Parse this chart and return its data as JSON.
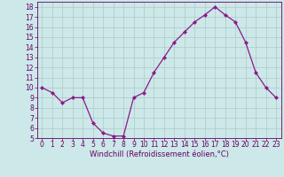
{
  "x": [
    0,
    1,
    2,
    3,
    4,
    5,
    6,
    7,
    8,
    9,
    10,
    11,
    12,
    13,
    14,
    15,
    16,
    17,
    18,
    19,
    20,
    21,
    22,
    23
  ],
  "y": [
    10.0,
    9.5,
    8.5,
    9.0,
    9.0,
    6.5,
    5.5,
    5.2,
    5.2,
    9.0,
    9.5,
    11.5,
    13.0,
    14.5,
    15.5,
    16.5,
    17.2,
    18.0,
    17.2,
    16.5,
    14.5,
    11.5,
    10.0,
    9.0
  ],
  "line_color": "#8b1a8b",
  "marker": "D",
  "marker_size": 2,
  "bg_color": "#cce8e8",
  "grid_color": "#b0c8c8",
  "xlabel": "Windchill (Refroidissement éolien,°C)",
  "xlim": [
    -0.5,
    23.5
  ],
  "ylim": [
    5,
    18.5
  ],
  "yticks": [
    5,
    6,
    7,
    8,
    9,
    10,
    11,
    12,
    13,
    14,
    15,
    16,
    17,
    18
  ],
  "xticks": [
    0,
    1,
    2,
    3,
    4,
    5,
    6,
    7,
    8,
    9,
    10,
    11,
    12,
    13,
    14,
    15,
    16,
    17,
    18,
    19,
    20,
    21,
    22,
    23
  ],
  "label_color": "#660066",
  "tick_fontsize": 5.5,
  "xlabel_fontsize": 6.0
}
